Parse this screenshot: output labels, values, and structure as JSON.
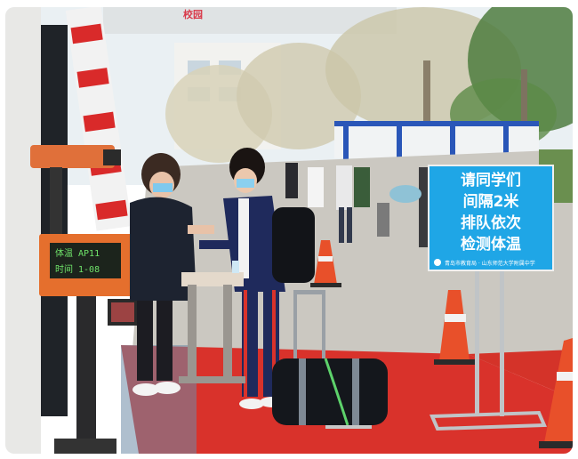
{
  "sign": {
    "lines": [
      "请同学们",
      "间隔2米",
      "排队依次",
      "检测体温"
    ],
    "footer": "青岛市教育局 · 山东师范大学附属中学",
    "color": "#1fa6e6"
  },
  "scanner": {
    "line1": "体温 AP11",
    "line2": "时间 1-08"
  },
  "banner": {
    "text": "校园"
  },
  "colors": {
    "carpet": "#d9322b",
    "sky": "#eef3f6",
    "road": "#c9c7c1",
    "cone": "#e8502a"
  }
}
